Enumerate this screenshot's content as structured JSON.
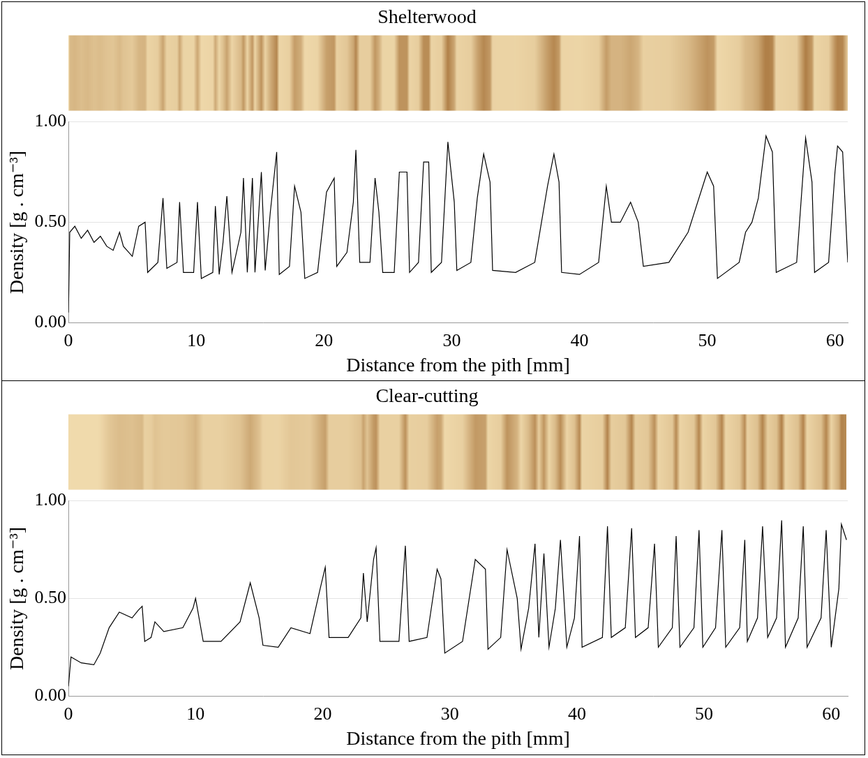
{
  "chart_data": [
    {
      "type": "line",
      "title": "Shelterwood",
      "x_label": "Distance from the pith [mm]",
      "y_label": "Density [g . cm⁻³]",
      "x": [
        0,
        0.1,
        0.5,
        1,
        1.5,
        2,
        2.5,
        3,
        3.5,
        4,
        4.3,
        5,
        5.5,
        6,
        6.2,
        7,
        7.4,
        7.7,
        8.5,
        8.7,
        9,
        9.8,
        10.1,
        10.4,
        11.3,
        11.5,
        11.8,
        12.1,
        12.4,
        12.8,
        13.5,
        13.7,
        14,
        14.4,
        14.6,
        15.1,
        15.4,
        15.8,
        16.3,
        16.5,
        17.3,
        17.7,
        18.2,
        18.5,
        19.5,
        20.2,
        20.8,
        21,
        21.8,
        22.3,
        22.5,
        22.8,
        23.6,
        24,
        24.3,
        24.6,
        25.5,
        25.9,
        26.5,
        26.7,
        27.4,
        27.8,
        28.2,
        28.4,
        29.2,
        29.7,
        30.2,
        30.4,
        31.5,
        32,
        32.5,
        33,
        33.2,
        35,
        36.5,
        37.5,
        38,
        38.4,
        38.6,
        40,
        41.5,
        42.1,
        42.5,
        43.2,
        44,
        44.6,
        45,
        47,
        48.5,
        50,
        50.5,
        50.8,
        52.5,
        53,
        53.5,
        54,
        54.6,
        55.1,
        55.4,
        57,
        57.7,
        58.2,
        58.4,
        59.5,
        60,
        60.2,
        60.6,
        61
      ],
      "values": [
        0.05,
        0.45,
        0.48,
        0.42,
        0.46,
        0.4,
        0.43,
        0.38,
        0.36,
        0.45,
        0.38,
        0.33,
        0.48,
        0.5,
        0.25,
        0.3,
        0.62,
        0.27,
        0.3,
        0.6,
        0.25,
        0.25,
        0.6,
        0.22,
        0.25,
        0.58,
        0.24,
        0.4,
        0.63,
        0.25,
        0.45,
        0.72,
        0.25,
        0.72,
        0.25,
        0.75,
        0.26,
        0.55,
        0.85,
        0.24,
        0.28,
        0.68,
        0.55,
        0.22,
        0.25,
        0.65,
        0.72,
        0.28,
        0.35,
        0.6,
        0.86,
        0.3,
        0.3,
        0.72,
        0.55,
        0.25,
        0.25,
        0.75,
        0.75,
        0.25,
        0.3,
        0.8,
        0.8,
        0.25,
        0.3,
        0.9,
        0.6,
        0.26,
        0.3,
        0.62,
        0.84,
        0.7,
        0.26,
        0.25,
        0.3,
        0.68,
        0.84,
        0.7,
        0.25,
        0.24,
        0.3,
        0.68,
        0.5,
        0.5,
        0.6,
        0.5,
        0.28,
        0.3,
        0.45,
        0.75,
        0.68,
        0.22,
        0.3,
        0.45,
        0.5,
        0.62,
        0.93,
        0.85,
        0.25,
        0.3,
        0.92,
        0.7,
        0.25,
        0.3,
        0.75,
        0.88,
        0.85,
        0.3
      ],
      "color": "#000000",
      "xlim": [
        0,
        61
      ],
      "xticks": [
        0,
        10,
        20,
        30,
        40,
        50,
        60
      ],
      "ylim": [
        0,
        1
      ],
      "yticks": [
        {
          "value": 0,
          "label": "0.00"
        },
        {
          "value": 0.5,
          "label": "0.50"
        },
        {
          "value": 1,
          "label": "1.00"
        }
      ],
      "grid": true
    },
    {
      "type": "line",
      "title": "Clear-cutting",
      "x_label": "Distance from the pith [mm]",
      "y_label": "Density [g . cm⁻³]",
      "x": [
        0,
        0.2,
        1,
        2,
        2.5,
        3.2,
        4,
        5,
        5.5,
        5.8,
        6,
        6.5,
        6.8,
        7.5,
        9,
        9.8,
        10,
        10.6,
        12,
        13.5,
        14.3,
        15,
        15.3,
        16.5,
        17.5,
        19,
        19.8,
        20.2,
        20.5,
        22,
        23,
        23.2,
        23.5,
        24,
        24.2,
        24.5,
        26,
        26.5,
        26.8,
        28.2,
        29,
        29.3,
        29.6,
        31,
        32,
        32.8,
        33,
        34,
        34.5,
        35.3,
        35.6,
        36.2,
        36.7,
        37,
        37.4,
        37.8,
        38.3,
        38.7,
        39.2,
        39.8,
        40.2,
        40.4,
        42,
        42.4,
        42.7,
        43.8,
        44.3,
        44.6,
        45.6,
        46.1,
        46.4,
        47.5,
        47.8,
        48.1,
        49.2,
        49.6,
        49.9,
        50.9,
        51.4,
        51.7,
        52.8,
        53.2,
        53.4,
        54.2,
        54.6,
        55,
        55.7,
        56.1,
        56.4,
        57.4,
        57.8,
        58.1,
        59.2,
        59.6,
        60,
        60.6,
        60.8,
        61.2
      ],
      "values": [
        0.05,
        0.2,
        0.17,
        0.16,
        0.22,
        0.35,
        0.43,
        0.4,
        0.44,
        0.46,
        0.28,
        0.3,
        0.38,
        0.33,
        0.35,
        0.45,
        0.5,
        0.28,
        0.28,
        0.38,
        0.58,
        0.4,
        0.26,
        0.25,
        0.35,
        0.32,
        0.55,
        0.66,
        0.3,
        0.3,
        0.4,
        0.63,
        0.38,
        0.7,
        0.76,
        0.28,
        0.28,
        0.77,
        0.28,
        0.3,
        0.65,
        0.6,
        0.22,
        0.28,
        0.7,
        0.65,
        0.24,
        0.3,
        0.75,
        0.5,
        0.24,
        0.45,
        0.78,
        0.3,
        0.73,
        0.25,
        0.45,
        0.8,
        0.25,
        0.4,
        0.82,
        0.25,
        0.3,
        0.87,
        0.3,
        0.35,
        0.86,
        0.3,
        0.35,
        0.78,
        0.25,
        0.35,
        0.82,
        0.25,
        0.35,
        0.85,
        0.25,
        0.35,
        0.85,
        0.25,
        0.35,
        0.8,
        0.28,
        0.4,
        0.87,
        0.3,
        0.4,
        0.9,
        0.25,
        0.4,
        0.87,
        0.25,
        0.4,
        0.85,
        0.25,
        0.55,
        0.88,
        0.8
      ],
      "color": "#000000",
      "xlim": [
        0,
        61.3
      ],
      "xticks": [
        0,
        10,
        20,
        30,
        40,
        50,
        60
      ],
      "ylim": [
        0,
        1
      ],
      "yticks": [
        {
          "value": 0,
          "label": "0.00"
        },
        {
          "value": 0.5,
          "label": "0.50"
        },
        {
          "value": 1,
          "label": "1.00"
        }
      ],
      "grid": true
    }
  ]
}
